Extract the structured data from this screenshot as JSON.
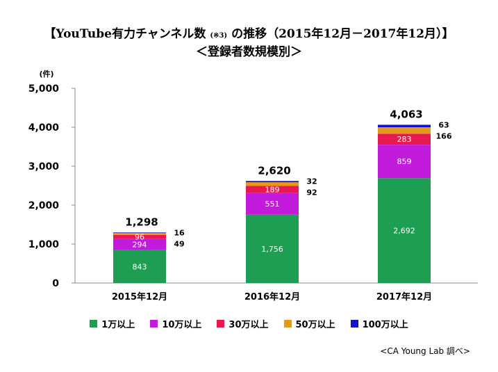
{
  "title": {
    "main_before": "【YouTube有力チャンネル数",
    "note": "(※3)",
    "main_after": "の推移（2015年12月－2017年12月）】",
    "subtitle": "＜登録者数規模別＞"
  },
  "source": "<CA Young Lab 調べ>",
  "chart_data": {
    "type": "bar",
    "stacked": true,
    "categories": [
      "2015年12月",
      "2016年12月",
      "2017年12月"
    ],
    "ylabel": "(件)",
    "ylim": [
      0,
      5000
    ],
    "yticks": [
      "0",
      "1,000",
      "2,000",
      "3,000",
      "4,000",
      "5,000"
    ],
    "ytick_values": [
      0,
      1000,
      2000,
      3000,
      4000,
      5000
    ],
    "totals": [
      "1,298",
      "2,620",
      "4,063"
    ],
    "total_values": [
      1298,
      2620,
      4063
    ],
    "series": [
      {
        "name": "1万以上",
        "values": [
          843,
          1756,
          2692
        ],
        "labels": [
          "843",
          "1,756",
          "2,692"
        ],
        "color": "#1e9e52"
      },
      {
        "name": "10万以上",
        "values": [
          294,
          551,
          859
        ],
        "labels": [
          "294",
          "551",
          "859"
        ],
        "color": "#c21bdc"
      },
      {
        "name": "30万以上",
        "values": [
          96,
          189,
          283
        ],
        "labels": [
          "96",
          "189",
          "283"
        ],
        "color": "#e8194e"
      },
      {
        "name": "50万以上",
        "values": [
          49,
          92,
          166
        ],
        "labels": [
          "49",
          "92",
          "166"
        ],
        "color": "#e59a19"
      },
      {
        "name": "100万以上",
        "values": [
          16,
          32,
          63
        ],
        "labels": [
          "16",
          "32",
          "63"
        ],
        "color": "#1212c8"
      }
    ],
    "grid": false,
    "legend_position": "bottom"
  }
}
